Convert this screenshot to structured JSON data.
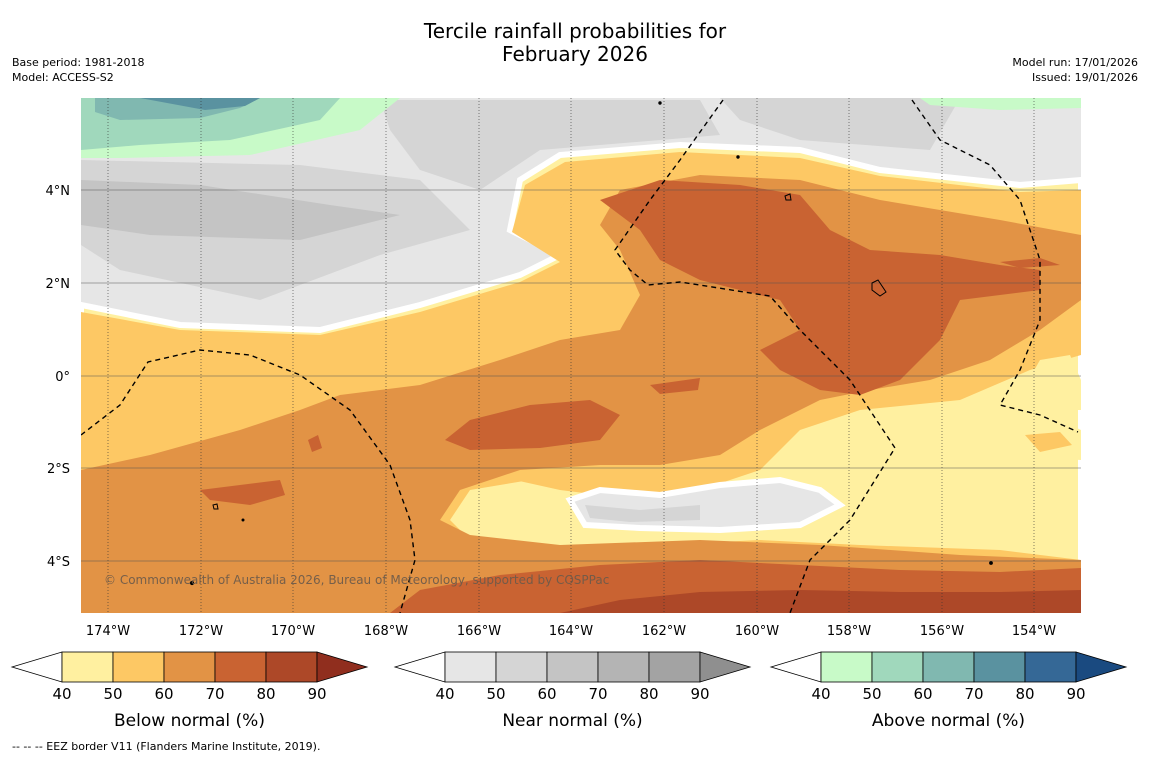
{
  "title": {
    "line1": "Tercile rainfall probabilities for",
    "line2": "February 2026"
  },
  "meta_left": {
    "base_period": "Base period: 1981-2018",
    "model": "Model: ACCESS-S2"
  },
  "meta_right": {
    "model_run": "Model run: 17/01/2026",
    "issued": "Issued: 19/01/2026"
  },
  "map": {
    "copyright": "© Commonwealth of Australia 2026, Bureau of Meteorology, supported by COSPPac",
    "lat_labels": [
      "4°N",
      "2°N",
      "0°",
      "2°S",
      "4°S"
    ],
    "lon_labels": [
      "174°W",
      "172°W",
      "170°W",
      "168°W",
      "166°W",
      "164°W",
      "162°W",
      "160°W",
      "158°W",
      "156°W",
      "154°W"
    ]
  },
  "colorbars": [
    {
      "label": "Below normal (%)",
      "ticks": [
        "40",
        "50",
        "60",
        "70",
        "80",
        "90"
      ],
      "colors": [
        "#fff0a0",
        "#fdc864",
        "#e29345",
        "#c96332",
        "#ad4828",
        "#902e1e"
      ]
    },
    {
      "label": "Near normal (%)",
      "ticks": [
        "40",
        "50",
        "60",
        "70",
        "80",
        "90"
      ],
      "colors": [
        "#e6e6e6",
        "#d5d5d5",
        "#c4c4c4",
        "#b4b4b4",
        "#a3a3a3",
        "#8f8f8f"
      ]
    },
    {
      "label": "Above normal (%)",
      "ticks": [
        "40",
        "50",
        "60",
        "70",
        "80",
        "90"
      ],
      "colors": [
        "#c8fac8",
        "#a0d8bc",
        "#80b8b0",
        "#5a92a0",
        "#356896",
        "#1a4a80"
      ]
    }
  ],
  "footnote": "--  --  -- EEZ border V11 (Flanders Marine Institute, 2019)."
}
